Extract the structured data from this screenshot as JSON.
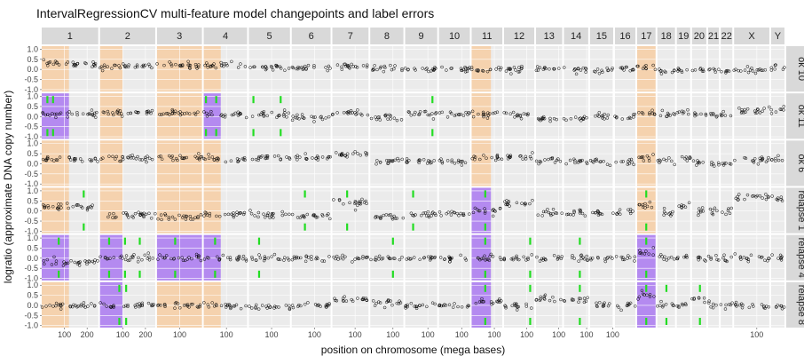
{
  "chart_data": {
    "type": "scatter",
    "title": "IntervalRegressionCV multi-feature model changepoints and label errors",
    "xlabel": "position on chromosome (mega bases)",
    "ylabel": "logratio (approximate DNA copy number)",
    "ylim": [
      -1.1,
      1.15
    ],
    "y_ticks": [
      "-1.0",
      "-0.5",
      "0.0",
      "0.5",
      "1.0"
    ],
    "y_tick_values": [
      -1.0,
      -0.5,
      0.0,
      0.5,
      1.0
    ],
    "grid": true,
    "chromosomes": [
      {
        "name": "1",
        "length": 249,
        "x_ticks": [
          100,
          200
        ]
      },
      {
        "name": "2",
        "length": 243,
        "x_ticks": [
          100,
          200
        ]
      },
      {
        "name": "3",
        "length": 198,
        "x_ticks": [
          100
        ]
      },
      {
        "name": "4",
        "length": 191,
        "x_ticks": [
          100
        ]
      },
      {
        "name": "5",
        "length": 181,
        "x_ticks": [
          100
        ]
      },
      {
        "name": "6",
        "length": 171,
        "x_ticks": [
          100
        ]
      },
      {
        "name": "7",
        "length": 159,
        "x_ticks": [
          100
        ]
      },
      {
        "name": "8",
        "length": 146,
        "x_ticks": [
          100
        ]
      },
      {
        "name": "9",
        "length": 141,
        "x_ticks": [
          100
        ]
      },
      {
        "name": "10",
        "length": 136,
        "x_ticks": [
          100
        ]
      },
      {
        "name": "11",
        "length": 135,
        "x_ticks": [
          100
        ]
      },
      {
        "name": "12",
        "length": 133,
        "x_ticks": [
          100
        ]
      },
      {
        "name": "13",
        "length": 115,
        "x_ticks": [
          100
        ]
      },
      {
        "name": "14",
        "length": 107,
        "x_ticks": [
          100
        ]
      },
      {
        "name": "15",
        "length": 102,
        "x_ticks": [
          100
        ]
      },
      {
        "name": "16",
        "length": 90,
        "x_ticks": []
      },
      {
        "name": "17",
        "length": 81,
        "x_ticks": []
      },
      {
        "name": "18",
        "length": 78,
        "x_ticks": []
      },
      {
        "name": "19",
        "length": 59,
        "x_ticks": []
      },
      {
        "name": "20",
        "length": 63,
        "x_ticks": []
      },
      {
        "name": "21",
        "length": 48,
        "x_ticks": []
      },
      {
        "name": "22",
        "length": 51,
        "x_ticks": []
      },
      {
        "name": "X",
        "length": 155,
        "x_ticks": [
          100
        ]
      },
      {
        "name": "Y",
        "length": 59,
        "x_ticks": []
      }
    ],
    "profiles": [
      "ok 10",
      "ok 11",
      "ok 6",
      "relapse 1",
      "relapse 4",
      "relapse 8"
    ],
    "profile_levels": {
      "ok 10": {
        "1": 0.25,
        "2": 0.15,
        "3": 0.2,
        "4": 0.2,
        "5": 0.1,
        "6": 0.1,
        "7": 0.15,
        "8": 0.05,
        "9": 0.0,
        "10": 0.0,
        "11": 0.0,
        "12": 0.0,
        "13": 0.0,
        "14": 0.0,
        "15": 0.0,
        "16": 0.0,
        "17": 0.1,
        "18": -0.1,
        "19": 0.0,
        "20": 0.0,
        "21": 0.0,
        "22": -0.1,
        "X": 0.0,
        "Y": 0.1
      },
      "ok 11": {
        "1": 0.1,
        "2": 0.2,
        "3": 0.15,
        "4": 0.1,
        "5": 0.1,
        "6": -0.05,
        "7": 0.15,
        "8": -0.1,
        "9": 0.15,
        "10": 0.1,
        "11": 0.1,
        "12": 0.1,
        "13": -0.1,
        "14": -0.1,
        "15": 0.0,
        "16": 0.0,
        "17": 0.2,
        "18": 0.1,
        "19": 0.2,
        "20": 0.1,
        "21": 0.1,
        "22": 0.1,
        "X": 0.3,
        "Y": 0.3
      },
      "ok 6": {
        "1": 0.25,
        "2": 0.25,
        "3": 0.3,
        "4": 0.25,
        "5": 0.3,
        "6": 0.3,
        "7": 0.5,
        "8": 0.1,
        "9": 0.1,
        "10": 0.1,
        "11": 0.3,
        "12": 0.3,
        "13": 0.1,
        "14": 0.1,
        "15": 0.1,
        "16": 0.1,
        "17": 0.3,
        "18": 0.1,
        "19": 0.3,
        "20": 0.1,
        "21": 0.0,
        "22": 0.0,
        "X": 0.2,
        "Y": 0.2
      },
      "relapse 1": {
        "1": 0.2,
        "2": -0.2,
        "3": -0.3,
        "4": -0.2,
        "5": -0.2,
        "6": -0.2,
        "7": 0.4,
        "8": -0.3,
        "9": -0.15,
        "10": -0.15,
        "11": 0.0,
        "12": 0.4,
        "13": -0.1,
        "14": -0.1,
        "15": -0.1,
        "16": -0.1,
        "17": 0.3,
        "18": -0.1,
        "19": 0.2,
        "20": 0.0,
        "21": 0.0,
        "22": 0.0,
        "X": 0.7,
        "Y": 0.6
      },
      "relapse 4": {
        "1": -0.2,
        "2": 0.0,
        "3": 0.0,
        "4": 0.0,
        "5": 0.0,
        "6": 0.0,
        "7": 0.0,
        "8": 0.0,
        "9": 0.0,
        "10": 0.0,
        "11": 0.0,
        "12": 0.0,
        "13": 0.0,
        "14": 0.0,
        "15": 0.0,
        "16": 0.0,
        "17": 0.3,
        "18": 0.0,
        "19": 0.0,
        "20": 0.0,
        "21": 0.0,
        "22": 0.0,
        "X": 0.0,
        "Y": 0.0
      },
      "relapse 8": {
        "1": 0.0,
        "2": 0.0,
        "3": 0.0,
        "4": 0.0,
        "5": -0.1,
        "6": 0.0,
        "7": 0.3,
        "8": 0.1,
        "9": 0.0,
        "10": 0.0,
        "11": 0.2,
        "12": 0.0,
        "13": 0.3,
        "14": 0.3,
        "15": 0.0,
        "16": 0.0,
        "17": 0.5,
        "18": 0.0,
        "19": 0.0,
        "20": 0.3,
        "21": 0.0,
        "22": 0.0,
        "X": 0.0,
        "Y": 0.0
      }
    },
    "highlight_regions": [
      {
        "profile": "ok 10",
        "chrom": "1",
        "start": 0,
        "end": 120,
        "color": "#f5d2ae"
      },
      {
        "profile": "ok 10",
        "chrom": "2",
        "start": 0,
        "end": 100,
        "color": "#f5d2ae"
      },
      {
        "profile": "ok 10",
        "chrom": "3",
        "start": 0,
        "end": 200,
        "color": "#f5d2ae"
      },
      {
        "profile": "ok 10",
        "chrom": "4",
        "start": 0,
        "end": 75,
        "color": "#f5d2ae"
      },
      {
        "profile": "ok 10",
        "chrom": "11",
        "start": 0,
        "end": 85,
        "color": "#f5d2ae"
      },
      {
        "profile": "ok 10",
        "chrom": "17",
        "start": 0,
        "end": 81,
        "color": "#f5d2ae"
      },
      {
        "profile": "ok 11",
        "chrom": "1",
        "start": 0,
        "end": 120,
        "color": "#b48af0"
      },
      {
        "profile": "ok 11",
        "chrom": "2",
        "start": 0,
        "end": 100,
        "color": "#f5d2ae"
      },
      {
        "profile": "ok 11",
        "chrom": "3",
        "start": 0,
        "end": 200,
        "color": "#f5d2ae"
      },
      {
        "profile": "ok 11",
        "chrom": "4",
        "start": 0,
        "end": 75,
        "color": "#b48af0"
      },
      {
        "profile": "ok 11",
        "chrom": "11",
        "start": 0,
        "end": 85,
        "color": "#f5d2ae"
      },
      {
        "profile": "ok 11",
        "chrom": "17",
        "start": 0,
        "end": 81,
        "color": "#f5d2ae"
      },
      {
        "profile": "ok 6",
        "chrom": "1",
        "start": 0,
        "end": 120,
        "color": "#f5d2ae"
      },
      {
        "profile": "ok 6",
        "chrom": "2",
        "start": 0,
        "end": 100,
        "color": "#f5d2ae"
      },
      {
        "profile": "ok 6",
        "chrom": "3",
        "start": 0,
        "end": 200,
        "color": "#f5d2ae"
      },
      {
        "profile": "ok 6",
        "chrom": "4",
        "start": 0,
        "end": 75,
        "color": "#f5d2ae"
      },
      {
        "profile": "ok 6",
        "chrom": "11",
        "start": 0,
        "end": 85,
        "color": "#f5d2ae"
      },
      {
        "profile": "ok 6",
        "chrom": "17",
        "start": 0,
        "end": 81,
        "color": "#f5d2ae"
      },
      {
        "profile": "relapse 1",
        "chrom": "1",
        "start": 0,
        "end": 120,
        "color": "#f5d2ae"
      },
      {
        "profile": "relapse 1",
        "chrom": "2",
        "start": 0,
        "end": 100,
        "color": "#f5d2ae"
      },
      {
        "profile": "relapse 1",
        "chrom": "3",
        "start": 0,
        "end": 200,
        "color": "#f5d2ae"
      },
      {
        "profile": "relapse 1",
        "chrom": "4",
        "start": 0,
        "end": 75,
        "color": "#f5d2ae"
      },
      {
        "profile": "relapse 1",
        "chrom": "11",
        "start": 0,
        "end": 85,
        "color": "#b48af0"
      },
      {
        "profile": "relapse 1",
        "chrom": "17",
        "start": 0,
        "end": 81,
        "color": "#f5d2ae"
      },
      {
        "profile": "relapse 4",
        "chrom": "1",
        "start": 0,
        "end": 120,
        "color": "#b48af0"
      },
      {
        "profile": "relapse 4",
        "chrom": "2",
        "start": 0,
        "end": 100,
        "color": "#b48af0"
      },
      {
        "profile": "relapse 4",
        "chrom": "3",
        "start": 0,
        "end": 200,
        "color": "#b48af0"
      },
      {
        "profile": "relapse 4",
        "chrom": "4",
        "start": 0,
        "end": 75,
        "color": "#b48af0"
      },
      {
        "profile": "relapse 4",
        "chrom": "11",
        "start": 0,
        "end": 85,
        "color": "#b48af0"
      },
      {
        "profile": "relapse 4",
        "chrom": "17",
        "start": 0,
        "end": 81,
        "color": "#b48af0"
      },
      {
        "profile": "relapse 8",
        "chrom": "1",
        "start": 0,
        "end": 120,
        "color": "#f5d2ae"
      },
      {
        "profile": "relapse 8",
        "chrom": "2",
        "start": 0,
        "end": 100,
        "color": "#b48af0"
      },
      {
        "profile": "relapse 8",
        "chrom": "3",
        "start": 0,
        "end": 200,
        "color": "#f5d2ae"
      },
      {
        "profile": "relapse 8",
        "chrom": "4",
        "start": 0,
        "end": 75,
        "color": "#f5d2ae"
      },
      {
        "profile": "relapse 8",
        "chrom": "11",
        "start": 0,
        "end": 85,
        "color": "#b48af0"
      },
      {
        "profile": "relapse 8",
        "chrom": "17",
        "start": 0,
        "end": 81,
        "color": "#b48af0"
      }
    ],
    "changepoints": [
      {
        "profile": "ok 11",
        "chrom": "1",
        "pos": 25
      },
      {
        "profile": "ok 11",
        "chrom": "1",
        "pos": 50
      },
      {
        "profile": "ok 11",
        "chrom": "4",
        "pos": 10
      },
      {
        "profile": "ok 11",
        "chrom": "4",
        "pos": 55
      },
      {
        "profile": "ok 11",
        "chrom": "5",
        "pos": 20
      },
      {
        "profile": "ok 11",
        "chrom": "5",
        "pos": 140
      },
      {
        "profile": "ok 11",
        "chrom": "9",
        "pos": 120
      },
      {
        "profile": "relapse 1",
        "chrom": "1",
        "pos": 185
      },
      {
        "profile": "relapse 1",
        "chrom": "6",
        "pos": 58
      },
      {
        "profile": "relapse 1",
        "chrom": "7",
        "pos": 65
      },
      {
        "profile": "relapse 1",
        "chrom": "9",
        "pos": 35
      },
      {
        "profile": "relapse 1",
        "chrom": "11",
        "pos": 60
      },
      {
        "profile": "relapse 1",
        "chrom": "17",
        "pos": 40
      },
      {
        "profile": "relapse 4",
        "chrom": "1",
        "pos": 75
      },
      {
        "profile": "relapse 4",
        "chrom": "2",
        "pos": 40
      },
      {
        "profile": "relapse 4",
        "chrom": "2",
        "pos": 110
      },
      {
        "profile": "relapse 4",
        "chrom": "2",
        "pos": 175
      },
      {
        "profile": "relapse 4",
        "chrom": "3",
        "pos": 80
      },
      {
        "profile": "relapse 4",
        "chrom": "4",
        "pos": 50
      },
      {
        "profile": "relapse 4",
        "chrom": "5",
        "pos": 45
      },
      {
        "profile": "relapse 4",
        "chrom": "8",
        "pos": 100
      },
      {
        "profile": "relapse 4",
        "chrom": "11",
        "pos": 60
      },
      {
        "profile": "relapse 4",
        "chrom": "12",
        "pos": 115
      },
      {
        "profile": "relapse 4",
        "chrom": "14",
        "pos": 70
      },
      {
        "profile": "relapse 4",
        "chrom": "17",
        "pos": 40
      },
      {
        "profile": "relapse 8",
        "chrom": "2",
        "pos": 85
      },
      {
        "profile": "relapse 8",
        "chrom": "2",
        "pos": 115
      },
      {
        "profile": "relapse 8",
        "chrom": "11",
        "pos": 60
      },
      {
        "profile": "relapse 8",
        "chrom": "12",
        "pos": 115
      },
      {
        "profile": "relapse 8",
        "chrom": "14",
        "pos": 70
      },
      {
        "profile": "relapse 8",
        "chrom": "17",
        "pos": 40
      },
      {
        "profile": "relapse 8",
        "chrom": "18",
        "pos": 40
      },
      {
        "profile": "relapse 8",
        "chrom": "20",
        "pos": 35
      }
    ],
    "colors": {
      "panel_bg": "#ebebeb",
      "grid": "#ffffff",
      "strip_bg": "#d9d9d9",
      "ok_region": "#f5d2ae",
      "error_region": "#b48af0",
      "changepoint": "#22dd22",
      "points": "#000000"
    }
  }
}
